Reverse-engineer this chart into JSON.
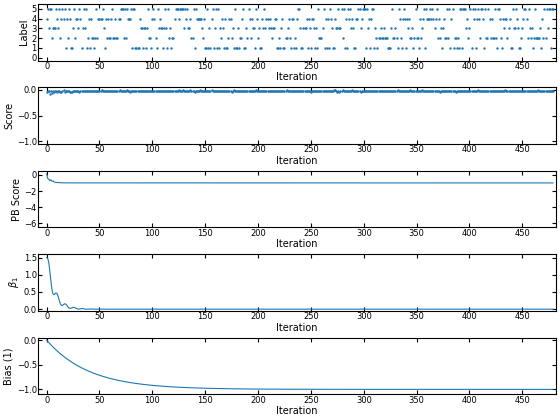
{
  "n_iter": 480,
  "line_color": "#1f77b4",
  "bg_color": "#ffffff",
  "label_ylim": [
    -0.3,
    5.5
  ],
  "label_yticks": [
    0,
    1,
    2,
    3,
    4,
    5
  ],
  "score_ylim": [
    -1.05,
    0.05
  ],
  "score_yticks": [
    0,
    -0.5,
    -1
  ],
  "pb_score_ylim": [
    -6.5,
    0.5
  ],
  "pb_score_yticks": [
    0,
    -2,
    -4,
    -6
  ],
  "beta_ylim": [
    -0.05,
    1.6
  ],
  "beta_yticks": [
    0,
    0.5,
    1,
    1.5
  ],
  "bias_ylim": [
    -1.1,
    0.05
  ],
  "bias_yticks": [
    0,
    -0.5,
    -1
  ],
  "xlim": [
    -8,
    482
  ],
  "xticks": [
    0,
    50,
    100,
    150,
    200,
    250,
    300,
    350,
    400,
    450
  ],
  "xlabel": "Iteration",
  "ylabel_label": "Label",
  "ylabel_score": "Score",
  "ylabel_pb": "PB Score",
  "ylabel_beta": "$\\beta_1$",
  "ylabel_bias": "Bias (1)",
  "marker_size": 1.5,
  "line_width": 0.8,
  "seed": 42,
  "n_classes": 5
}
